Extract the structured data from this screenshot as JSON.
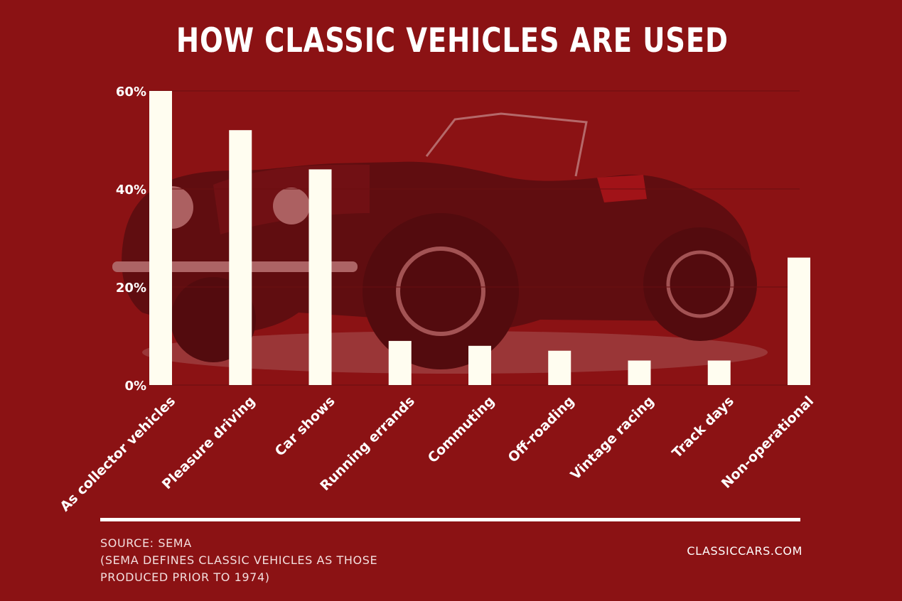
{
  "title": "HOW CLASSIC VEHICLES ARE USED",
  "footer": {
    "source_line1": "SOURCE: SEMA",
    "source_line2": "(SEMA DEFINES CLASSIC VEHICLES AS THOSE",
    "source_line3": "PRODUCED PRIOR TO 1974)",
    "brand": "CLASSICCARS.COM"
  },
  "colors": {
    "background": "#8b1214",
    "bar": "#fffdf0",
    "text": "#ffffff",
    "grid": "#6a0e10"
  },
  "chart_data": {
    "type": "bar",
    "title": "HOW CLASSIC VEHICLES ARE USED",
    "xlabel": "",
    "ylabel": "",
    "categories": [
      "As collector vehicles",
      "Pleasure driving",
      "Car shows",
      "Running errands",
      "Commuting",
      "Off-roading",
      "Vintage racing",
      "Track days",
      "Non-operational"
    ],
    "values": [
      60,
      52,
      44,
      9,
      8,
      7,
      5,
      5,
      26
    ],
    "ylim": [
      0,
      60
    ],
    "yticks": [
      0,
      20,
      40,
      60
    ],
    "ytick_labels": [
      "0%",
      "20%",
      "40%",
      "60%"
    ],
    "grid": true,
    "legend": "none",
    "background_image": "classic convertible sports car photo with red tint"
  }
}
